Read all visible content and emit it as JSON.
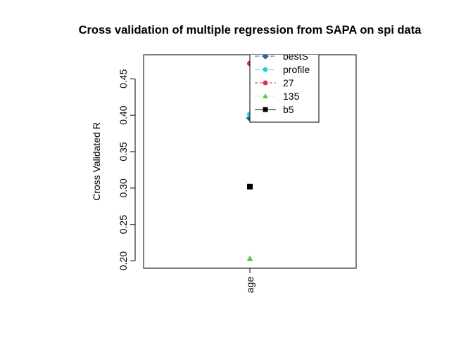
{
  "chart_data": {
    "type": "scatter",
    "title": "Cross validation of multiple regression from SAPA on spi data",
    "xlabel": "",
    "ylabel": "Cross Validated R",
    "categories": [
      "age"
    ],
    "ylim": [
      0.19,
      0.483
    ],
    "yticks": [
      0.2,
      0.25,
      0.3,
      0.35,
      0.4,
      0.45
    ],
    "ytick_labels": [
      "0.20",
      "0.25",
      "0.30",
      "0.35",
      "0.40",
      "0.45"
    ],
    "grid": false,
    "legend_position": "top-center",
    "series": [
      {
        "name": "bestS",
        "values": [
          0.396
        ],
        "color": "#2166ac",
        "marker": "diamond",
        "line": "dashdot"
      },
      {
        "name": "profile",
        "values": [
          0.401
        ],
        "color": "#22d3d9",
        "marker": "circle",
        "line": "longdash"
      },
      {
        "name": "27",
        "values": [
          0.471
        ],
        "color": "#d1365b",
        "marker": "circle",
        "line": "dashed"
      },
      {
        "name": "135",
        "values": [
          0.203
        ],
        "color": "#5fc94a",
        "marker": "triangle",
        "line": "dotted"
      },
      {
        "name": "b5",
        "values": [
          0.302
        ],
        "color": "#000000",
        "marker": "square",
        "line": "solid"
      }
    ]
  }
}
